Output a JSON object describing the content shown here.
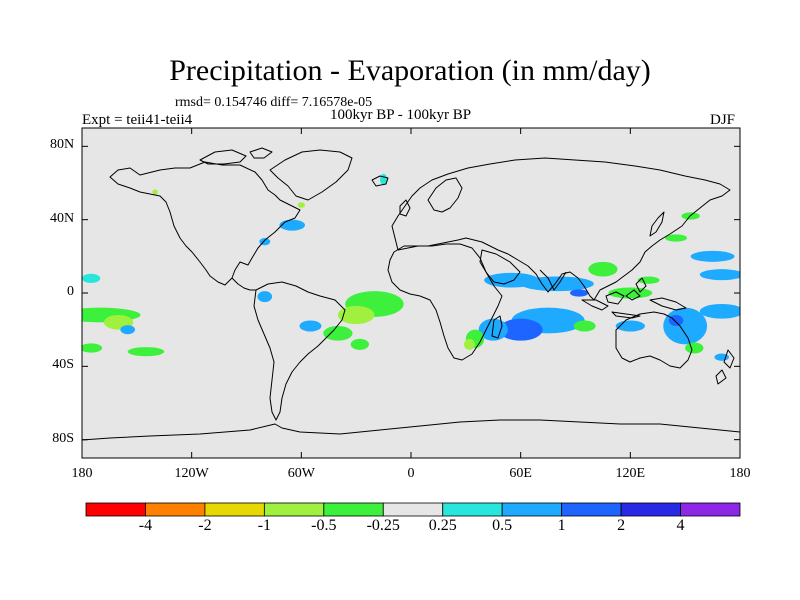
{
  "title": "Precipitation - Evaporation (in mm/day)",
  "stats": "rmsd= 0.154746 diff= 7.16578e-05",
  "experiment": "Expt = teii41-teii4",
  "period": "100kyr BP - 100kyr BP",
  "season": "DJF",
  "chart_data": {
    "type": "heatmap",
    "title": "Precipitation - Evaporation (in mm/day)",
    "subtitle": "100kyr BP - 100kyr BP",
    "xlabel": "",
    "ylabel": "",
    "xlim": [
      -180,
      180
    ],
    "ylim": [
      -90,
      90
    ],
    "grid": false,
    "lat_ticks": [
      "80N",
      "40N",
      "0",
      "40S",
      "80S"
    ],
    "lat_values": [
      80,
      40,
      0,
      -40,
      -80
    ],
    "lon_ticks": [
      "180",
      "120W",
      "60W",
      "0",
      "60E",
      "120E",
      "180"
    ],
    "lon_values": [
      -180,
      -120,
      -60,
      0,
      60,
      120,
      180
    ],
    "colorbar": {
      "levels": [
        "-4",
        "-2",
        "-1",
        "-0.5",
        "-0.25",
        "0.25",
        "0.5",
        "1",
        "2",
        "4"
      ],
      "colors": [
        "#ff0000",
        "#ff8000",
        "#e6d800",
        "#a0f040",
        "#3cf03c",
        "#e6e6e6",
        "#28e6dc",
        "#1eaaff",
        "#1e64ff",
        "#2828e6",
        "#8c28e6"
      ]
    },
    "anomalies": [
      {
        "lon": -20,
        "lat": -6,
        "rx": 16,
        "ry": 7,
        "value": -0.5
      },
      {
        "lon": -30,
        "lat": -12,
        "rx": 10,
        "ry": 5,
        "value": -1
      },
      {
        "lon": -40,
        "lat": -22,
        "rx": 8,
        "ry": 4,
        "value": -0.5
      },
      {
        "lon": -55,
        "lat": -18,
        "rx": 6,
        "ry": 3,
        "value": 0.5
      },
      {
        "lon": -28,
        "lat": -28,
        "rx": 5,
        "ry": 3,
        "value": -0.5
      },
      {
        "lon": -80,
        "lat": -2,
        "rx": 4,
        "ry": 3,
        "value": 0.5
      },
      {
        "lon": -170,
        "lat": -12,
        "rx": 22,
        "ry": 4,
        "value": -0.5
      },
      {
        "lon": -160,
        "lat": -16,
        "rx": 8,
        "ry": 4,
        "value": -1
      },
      {
        "lon": -155,
        "lat": -20,
        "rx": 4,
        "ry": 2.5,
        "value": 0.5
      },
      {
        "lon": -175,
        "lat": -30,
        "rx": 6,
        "ry": 2.5,
        "value": -0.5
      },
      {
        "lon": -145,
        "lat": -32,
        "rx": 10,
        "ry": 2.5,
        "value": -0.5
      },
      {
        "lon": -175,
        "lat": 8,
        "rx": 5,
        "ry": 2.5,
        "value": 0.25
      },
      {
        "lon": -65,
        "lat": 37,
        "rx": 7,
        "ry": 3,
        "value": 0.5
      },
      {
        "lon": -80,
        "lat": 28,
        "rx": 3,
        "ry": 2,
        "value": 0.5
      },
      {
        "lon": -60,
        "lat": 48,
        "rx": 2,
        "ry": 1.5,
        "value": -1
      },
      {
        "lon": -140,
        "lat": 55,
        "rx": 1.5,
        "ry": 1.5,
        "value": -1
      },
      {
        "lon": -15,
        "lat": 62,
        "rx": 2,
        "ry": 3,
        "value": 0.25
      },
      {
        "lon": 55,
        "lat": 7,
        "rx": 15,
        "ry": 4,
        "value": 0.5
      },
      {
        "lon": 80,
        "lat": 5,
        "rx": 20,
        "ry": 4,
        "value": 0.5
      },
      {
        "lon": 75,
        "lat": -15,
        "rx": 20,
        "ry": 7,
        "value": 0.5
      },
      {
        "lon": 60,
        "lat": -20,
        "rx": 12,
        "ry": 6,
        "value": 1
      },
      {
        "lon": 45,
        "lat": -20,
        "rx": 8,
        "ry": 6,
        "value": 0.5
      },
      {
        "lon": 35,
        "lat": -25,
        "rx": 5,
        "ry": 5,
        "value": -0.5
      },
      {
        "lon": 32,
        "lat": -28,
        "rx": 3,
        "ry": 3,
        "value": -1
      },
      {
        "lon": 95,
        "lat": -18,
        "rx": 6,
        "ry": 3,
        "value": -0.5
      },
      {
        "lon": 120,
        "lat": -18,
        "rx": 8,
        "ry": 3,
        "value": 0.5
      },
      {
        "lon": 105,
        "lat": 13,
        "rx": 8,
        "ry": 4,
        "value": -0.5
      },
      {
        "lon": 92,
        "lat": 0,
        "rx": 5,
        "ry": 2,
        "value": 1
      },
      {
        "lon": 120,
        "lat": 0,
        "rx": 12,
        "ry": 3,
        "value": -0.5
      },
      {
        "lon": 150,
        "lat": -18,
        "rx": 12,
        "ry": 10,
        "value": 0.5
      },
      {
        "lon": 145,
        "lat": -15,
        "rx": 4,
        "ry": 3,
        "value": 1
      },
      {
        "lon": 155,
        "lat": -30,
        "rx": 5,
        "ry": 3,
        "value": -0.5
      },
      {
        "lon": 165,
        "lat": 20,
        "rx": 12,
        "ry": 3,
        "value": 0.5
      },
      {
        "lon": 170,
        "lat": 10,
        "rx": 12,
        "ry": 3,
        "value": 0.5
      },
      {
        "lon": 170,
        "lat": -10,
        "rx": 12,
        "ry": 4,
        "value": 0.5
      },
      {
        "lon": 145,
        "lat": 30,
        "rx": 6,
        "ry": 2,
        "value": -0.5
      },
      {
        "lon": 170,
        "lat": -35,
        "rx": 4,
        "ry": 2,
        "value": 0.5
      },
      {
        "lon": 153,
        "lat": 42,
        "rx": 5,
        "ry": 2,
        "value": -0.5
      },
      {
        "lon": 130,
        "lat": 7,
        "rx": 6,
        "ry": 2,
        "value": -0.5
      }
    ]
  }
}
